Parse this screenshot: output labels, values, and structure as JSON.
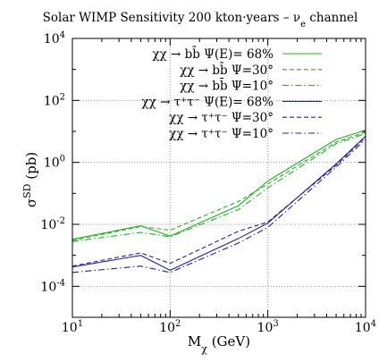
{
  "chart_data": {
    "type": "line",
    "title": "Solar WIMP Sensitivity 200 kton·years – ν",
    "title_sub": "e",
    "title_tail": " channel",
    "xlabel": "M",
    "xlabel_sub": "χ",
    "xlabel_tail": " (GeV)",
    "ylabel": "σ",
    "ylabel_sup": "SD",
    "ylabel_tail": " (pb)",
    "x_scale": "log",
    "y_scale": "log",
    "xlim": [
      10,
      10000
    ],
    "ylim": [
      1e-05,
      10000
    ],
    "grid": true,
    "legend_position": "top-right",
    "x_ticks": [
      {
        "value": 10,
        "base": "10",
        "exp": "1"
      },
      {
        "value": 100,
        "base": "10",
        "exp": "2"
      },
      {
        "value": 1000,
        "base": "10",
        "exp": "3"
      },
      {
        "value": 10000,
        "base": "10",
        "exp": "4"
      }
    ],
    "y_ticks": [
      {
        "value": 0.0001,
        "base": "10",
        "exp": "-4"
      },
      {
        "value": 0.01,
        "base": "10",
        "exp": "-2"
      },
      {
        "value": 1,
        "base": "10",
        "exp": "0"
      },
      {
        "value": 100,
        "base": "10",
        "exp": "2"
      },
      {
        "value": 10000,
        "base": "10",
        "exp": "4"
      }
    ],
    "series": [
      {
        "name": "χχ → bb̄ Ψ(E)= 68%",
        "color": "#22b522",
        "dash": "solid",
        "x": [
          10,
          50,
          100,
          500,
          1000,
          5000,
          10000
        ],
        "y": [
          0.0033,
          0.009,
          0.0042,
          0.04,
          0.25,
          5.5,
          11
        ]
      },
      {
        "name": "χχ → bb̄ Ψ=30°",
        "color": "#22b522",
        "dash": "dash",
        "x": [
          10,
          50,
          100,
          500,
          1000,
          5000,
          10000
        ],
        "y": [
          0.003,
          0.0085,
          0.0065,
          0.055,
          0.2,
          4.5,
          9.5
        ]
      },
      {
        "name": "χχ → bb̄ Ψ=10°",
        "color": "#22b522",
        "dash": "dashdot",
        "x": [
          10,
          50,
          100,
          500,
          1000,
          5000,
          10000
        ],
        "y": [
          0.0028,
          0.0055,
          0.004,
          0.03,
          0.15,
          4,
          8.5
        ]
      },
      {
        "name": "χχ → τ⁺τ⁻ Ψ(E)= 68%",
        "color": "#2323a8",
        "dash": "solid",
        "x": [
          10,
          50,
          100,
          500,
          1000,
          5000,
          10000
        ],
        "y": [
          0.00042,
          0.001,
          0.00033,
          0.0035,
          0.011,
          0.9,
          7
        ]
      },
      {
        "name": "χχ → τ⁺τ⁻ Ψ=30°",
        "color": "#2323a8",
        "dash": "dash",
        "x": [
          10,
          50,
          100,
          500,
          1000,
          5000,
          10000
        ],
        "y": [
          0.00045,
          0.0012,
          0.00055,
          0.006,
          0.012,
          0.8,
          6.5
        ]
      },
      {
        "name": "χχ → τ⁺τ⁻ Ψ=10°",
        "color": "#2323a8",
        "dash": "dashdot",
        "x": [
          10,
          50,
          100,
          500,
          1000,
          5000,
          10000
        ],
        "y": [
          0.00028,
          0.00045,
          0.00028,
          0.0025,
          0.008,
          0.7,
          5.5
        ]
      }
    ]
  }
}
